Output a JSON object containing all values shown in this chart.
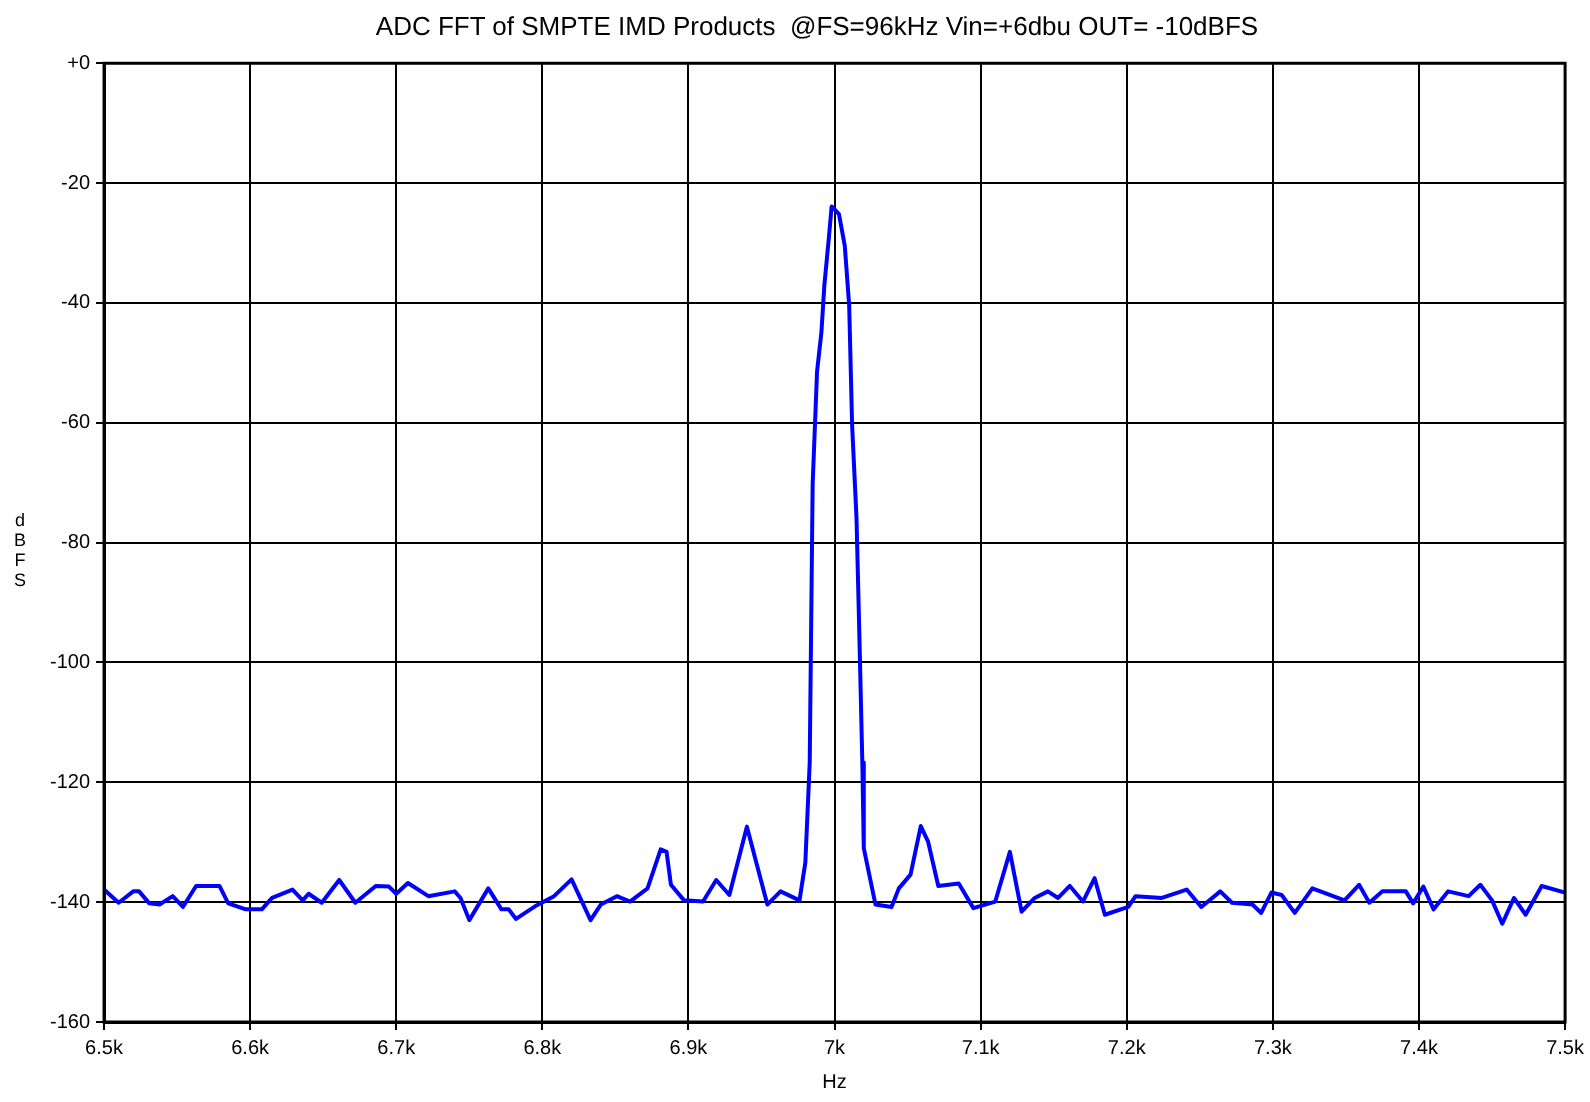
{
  "chart_data": {
    "type": "line",
    "title": "ADC FFT of SMPTE IMD Products  @FS=96kHz Vin=+6dbu OUT= -10dBFS",
    "xlabel": "Hz",
    "ylabel": "dBFS",
    "xlim": [
      6500,
      7500
    ],
    "xticks": [
      {
        "value": 6500,
        "label": "6.5k"
      },
      {
        "value": 6600,
        "label": "6.6k"
      },
      {
        "value": 6700,
        "label": "6.7k"
      },
      {
        "value": 6800,
        "label": "6.8k"
      },
      {
        "value": 6900,
        "label": "6.9k"
      },
      {
        "value": 7000,
        "label": "7k"
      },
      {
        "value": 7100,
        "label": "7.1k"
      },
      {
        "value": 7200,
        "label": "7.2k"
      },
      {
        "value": 7300,
        "label": "7.3k"
      },
      {
        "value": 7400,
        "label": "7.4k"
      },
      {
        "value": 7500,
        "label": "7.5k"
      }
    ],
    "ylim": [
      -160,
      0
    ],
    "yticks": [
      {
        "value": 0,
        "label": "+0"
      },
      -20,
      -40,
      -60,
      -80,
      -100,
      -120,
      -140,
      -160
    ],
    "grid": true,
    "legend": false,
    "marker": "none",
    "line_style": "solid",
    "x": [
      6500,
      6510,
      6520,
      6524,
      6531,
      6538,
      6547,
      6554,
      6563,
      6579,
      6585,
      6597,
      6608,
      6615,
      6629,
      6636,
      6640,
      6649,
      6661,
      6672,
      6686,
      6695,
      6700,
      6708,
      6722,
      6740,
      6744,
      6750,
      6763,
      6772,
      6777,
      6782,
      6795,
      6808,
      6820,
      6833,
      6840,
      6851,
      6860,
      6872,
      6881,
      6885,
      6888,
      6897,
      6910,
      6919,
      6928,
      6940,
      6954,
      6963,
      6976,
      6980,
      6983,
      6984,
      6985,
      6988,
      6991,
      6993,
      6996,
      6998,
      7000,
      7003,
      7007,
      7010,
      7012,
      7015,
      7017,
      7019,
      7020,
      7028,
      7039,
      7044,
      7052,
      7059,
      7064,
      7071,
      7085,
      7095,
      7110,
      7120,
      7128,
      7137,
      7146,
      7153,
      7161,
      7170,
      7178,
      7185,
      7201,
      7206,
      7224,
      7241,
      7251,
      7264,
      7272,
      7286,
      7292,
      7299,
      7306,
      7315,
      7327,
      7349,
      7359,
      7366,
      7375,
      7391,
      7396,
      7403,
      7410,
      7420,
      7434,
      7442,
      7450,
      7457,
      7465,
      7473,
      7484,
      7500
    ],
    "series": [
      {
        "color": "#0000ff",
        "values": [
          -137.9,
          -140.1,
          -138.2,
          -138.2,
          -140.2,
          -140.4,
          -139,
          -140.8,
          -137.3,
          -137.3,
          -140.2,
          -141.2,
          -141.2,
          -139.3,
          -137.9,
          -139.7,
          -138.6,
          -140.1,
          -136.3,
          -140.1,
          -137.3,
          -137.4,
          -138.6,
          -136.8,
          -139,
          -138.2,
          -139.3,
          -143,
          -137.7,
          -141.2,
          -141.2,
          -142.8,
          -140.7,
          -139,
          -136.2,
          -143,
          -140.4,
          -139,
          -139.9,
          -137.7,
          -131.2,
          -131.6,
          -137.1,
          -139.7,
          -139.9,
          -136.3,
          -138.8,
          -127.4,
          -140.4,
          -138.2,
          -139.7,
          -133.4,
          -116.7,
          -93.5,
          -70.3,
          -51.5,
          -44.9,
          -37.1,
          -29.4,
          -23.9,
          -24.4,
          -25.2,
          -30.5,
          -40.4,
          -60.3,
          -75.8,
          -95.7,
          -116.7,
          -131,
          -140.4,
          -140.8,
          -137.7,
          -135.4,
          -127.3,
          -129.9,
          -137.3,
          -136.9,
          -141,
          -139.9,
          -131.6,
          -141.6,
          -139.3,
          -138.2,
          -139.3,
          -137.3,
          -139.9,
          -136,
          -142.1,
          -140.8,
          -139,
          -139.3,
          -137.9,
          -140.8,
          -138.2,
          -140.1,
          -140.4,
          -141.8,
          -138.4,
          -138.8,
          -141.8,
          -137.7,
          -139.7,
          -137.1,
          -140.1,
          -138.2,
          -138.2,
          -140.2,
          -137.4,
          -141.2,
          -138.2,
          -139,
          -137.1,
          -139.7,
          -143.6,
          -139.3,
          -142.1,
          -137.3,
          -138.4
        ]
      }
    ]
  }
}
